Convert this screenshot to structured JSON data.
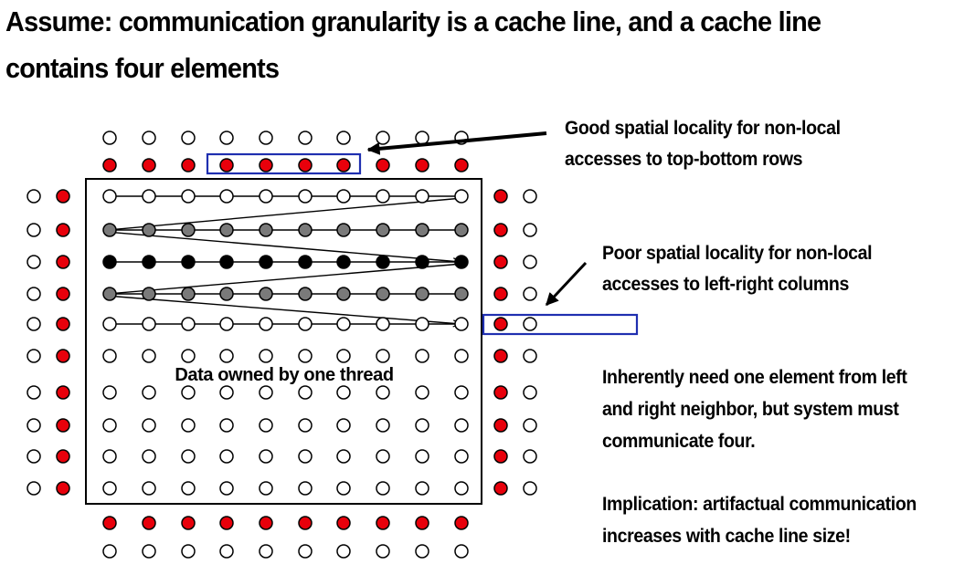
{
  "title": {
    "line1": "Assume: communication granularity is a cache line, and a cache line",
    "line2": "contains four elements"
  },
  "annotations": {
    "top_rows": {
      "line1": "Good spatial locality for non-local",
      "line2": "accesses to top-bottom rows"
    },
    "side_columns": {
      "line1": "Poor spatial locality for non-local",
      "line2": "accesses to left-right columns"
    },
    "neighbor_need": {
      "line1": "Inherently need one element from left",
      "line2": "and right neighbor, but system must",
      "line3": "communicate four."
    },
    "implication": {
      "line1": "Implication: artifactual communication",
      "line2": "increases with cache line size!"
    }
  },
  "grid": {
    "block_label": "Data owned by one thread",
    "owned_rows": 10,
    "owned_cols": 10,
    "row_shading": [
      "open",
      "gray",
      "black",
      "gray",
      "open",
      "open",
      "open",
      "open",
      "open",
      "open"
    ],
    "traversal_rows": 5,
    "cache_line_elements": 4,
    "colors": {
      "ghost_fill": "#e8000b",
      "highlight_box": "#1f2fb0",
      "gray_fill": "#7a7a7a",
      "black_fill": "#000000",
      "open_fill": "#ffffff"
    }
  }
}
